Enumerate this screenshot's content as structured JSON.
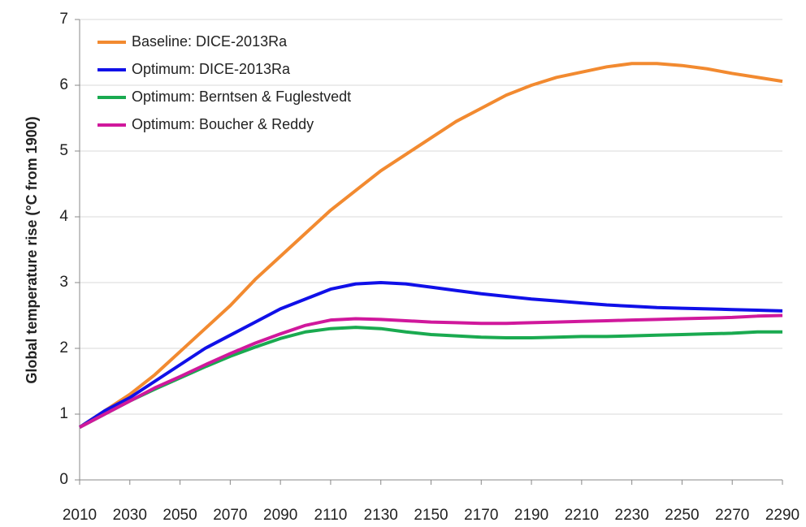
{
  "chart_data": {
    "type": "line",
    "y_label": "Global temperature rise (°C from 1900)",
    "x": [
      2010,
      2020,
      2030,
      2040,
      2050,
      2060,
      2070,
      2080,
      2090,
      2100,
      2110,
      2120,
      2130,
      2140,
      2150,
      2160,
      2170,
      2180,
      2190,
      2200,
      2210,
      2220,
      2230,
      2240,
      2250,
      2260,
      2270,
      2280,
      2290
    ],
    "series": [
      {
        "name": "Baseline: DICE-2013Ra",
        "color": "#f28a30",
        "values": [
          0.8,
          1.05,
          1.3,
          1.6,
          1.95,
          2.3,
          2.65,
          3.05,
          3.4,
          3.75,
          4.1,
          4.4,
          4.7,
          4.95,
          5.2,
          5.45,
          5.65,
          5.85,
          6.0,
          6.12,
          6.2,
          6.28,
          6.33,
          6.33,
          6.3,
          6.25,
          6.18,
          6.12,
          6.06
        ]
      },
      {
        "name": "Optimum: DICE-2013Ra",
        "color": "#1010e8",
        "values": [
          0.8,
          1.05,
          1.25,
          1.5,
          1.75,
          2.0,
          2.2,
          2.4,
          2.6,
          2.75,
          2.9,
          2.98,
          3.0,
          2.98,
          2.93,
          2.88,
          2.83,
          2.79,
          2.75,
          2.72,
          2.69,
          2.66,
          2.64,
          2.62,
          2.61,
          2.6,
          2.59,
          2.58,
          2.57
        ]
      },
      {
        "name": "Optimum: Berntsen & Fuglestvedt",
        "color": "#1aaa50",
        "values": [
          0.8,
          1.0,
          1.2,
          1.38,
          1.55,
          1.72,
          1.88,
          2.02,
          2.15,
          2.25,
          2.3,
          2.32,
          2.3,
          2.25,
          2.21,
          2.19,
          2.17,
          2.16,
          2.16,
          2.17,
          2.18,
          2.18,
          2.19,
          2.2,
          2.21,
          2.22,
          2.23,
          2.25,
          2.25
        ]
      },
      {
        "name": "Optimum: Boucher & Reddy",
        "color": "#d0189c",
        "values": [
          0.8,
          1.0,
          1.2,
          1.4,
          1.57,
          1.75,
          1.92,
          2.08,
          2.22,
          2.35,
          2.43,
          2.45,
          2.44,
          2.42,
          2.4,
          2.39,
          2.38,
          2.38,
          2.39,
          2.4,
          2.41,
          2.42,
          2.43,
          2.44,
          2.45,
          2.46,
          2.47,
          2.49,
          2.5
        ]
      }
    ],
    "xlim": [
      2010,
      2290
    ],
    "xticks": [
      2010,
      2030,
      2050,
      2070,
      2090,
      2110,
      2130,
      2150,
      2170,
      2190,
      2210,
      2230,
      2250,
      2270,
      2290
    ],
    "ylim": [
      0,
      7
    ],
    "yticks": [
      0,
      1,
      2,
      3,
      4,
      5,
      6,
      7
    ],
    "grid": true,
    "legend": "upper-left"
  }
}
